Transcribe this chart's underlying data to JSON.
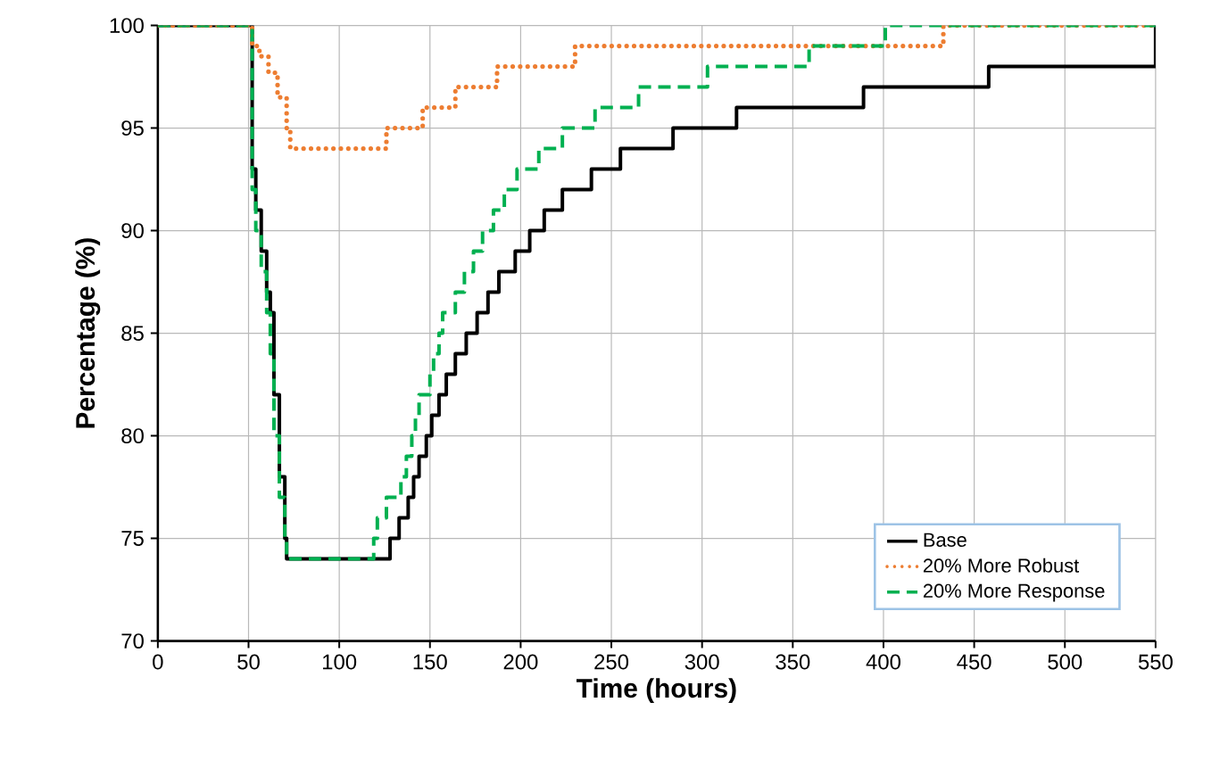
{
  "chart_data": {
    "type": "step",
    "xlabel": "Time (hours)",
    "ylabel": "Percentage (%)",
    "xlim": [
      0,
      550
    ],
    "ylim": [
      70,
      100
    ],
    "xticks": [
      0,
      50,
      100,
      150,
      200,
      250,
      300,
      350,
      400,
      450,
      500,
      550
    ],
    "yticks": [
      70,
      75,
      80,
      85,
      90,
      95,
      100
    ],
    "grid": true,
    "legend": "bottom right",
    "marker": "none",
    "series": [
      {
        "name": "Base",
        "color": "#000000",
        "line_style": "solid",
        "x": [
          0,
          50,
          52,
          54,
          57,
          60,
          62,
          64,
          67,
          70,
          71,
          128,
          133,
          138,
          141,
          144,
          148,
          151,
          155,
          159,
          164,
          170,
          176,
          182,
          188,
          197,
          205,
          213,
          223,
          239,
          255,
          284,
          319,
          389,
          458,
          550
        ],
        "values": [
          100,
          100,
          93,
          91,
          89,
          87,
          86,
          82,
          78,
          75,
          74,
          75,
          76,
          77,
          78,
          79,
          80,
          81,
          82,
          83,
          84,
          85,
          86,
          87,
          88,
          89,
          90,
          91,
          92,
          93,
          94,
          95,
          96,
          97,
          98,
          100
        ]
      },
      {
        "name": "20% More Robust",
        "color": "#ED7D31",
        "line_style": "dotted",
        "x": [
          0,
          50,
          52,
          56,
          61,
          66,
          71,
          73,
          126,
          146,
          164,
          187,
          230,
          433,
          550
        ],
        "values": [
          100,
          100,
          99,
          98.5,
          97.7,
          96.5,
          95,
          94,
          95,
          96,
          97,
          98,
          99,
          100,
          100
        ]
      },
      {
        "name": "20% More Response",
        "color": "#00B050",
        "line_style": "dashed",
        "x": [
          0,
          50,
          52,
          54,
          57,
          60,
          62,
          64,
          67,
          70,
          71,
          119,
          121,
          126,
          134,
          137,
          140,
          142,
          144,
          150,
          152,
          155,
          157,
          164,
          169,
          174,
          179,
          185,
          191,
          198,
          210,
          223,
          241,
          265,
          303,
          359,
          401,
          550
        ],
        "values": [
          100,
          100,
          92,
          90,
          88,
          86,
          84,
          80,
          77,
          75,
          74,
          75,
          76,
          77,
          78,
          79,
          80,
          81,
          82,
          83,
          84,
          85,
          86,
          87,
          88,
          89,
          90,
          91,
          92,
          93,
          94,
          95,
          96,
          97,
          98,
          99,
          100,
          100
        ]
      }
    ]
  }
}
